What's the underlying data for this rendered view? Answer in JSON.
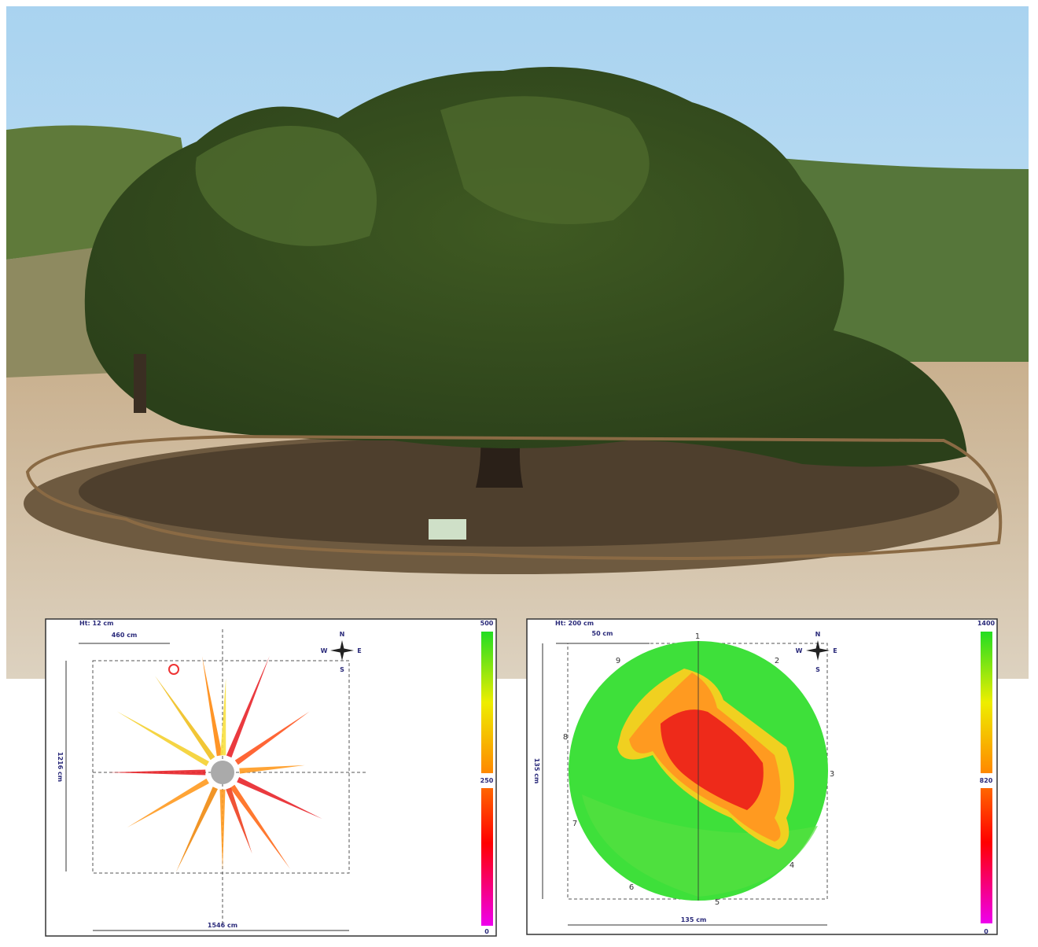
{
  "left_panel": {
    "height_label": "Ht: 12 cm",
    "scale_label": "460 cm",
    "y_dimension": "1216 cm",
    "x_dimension": "1546 cm",
    "compass": {
      "north": "N",
      "west": "W",
      "east": "E",
      "south": "S"
    },
    "legend_labels": [
      "500",
      "250",
      "0"
    ]
  },
  "right_panel": {
    "height_label": "Ht: 200 cm",
    "scale_label": "50 cm",
    "y_dimension": "135 cm",
    "x_dimension": "135 cm",
    "compass": {
      "north": "N",
      "west": "W",
      "east": "E",
      "south": "S"
    },
    "legend_labels": [
      "1400",
      "820",
      "0"
    ],
    "sensor_labels": [
      "1",
      "2",
      "3",
      "4",
      "5",
      "6",
      "7",
      "8",
      "9"
    ]
  }
}
